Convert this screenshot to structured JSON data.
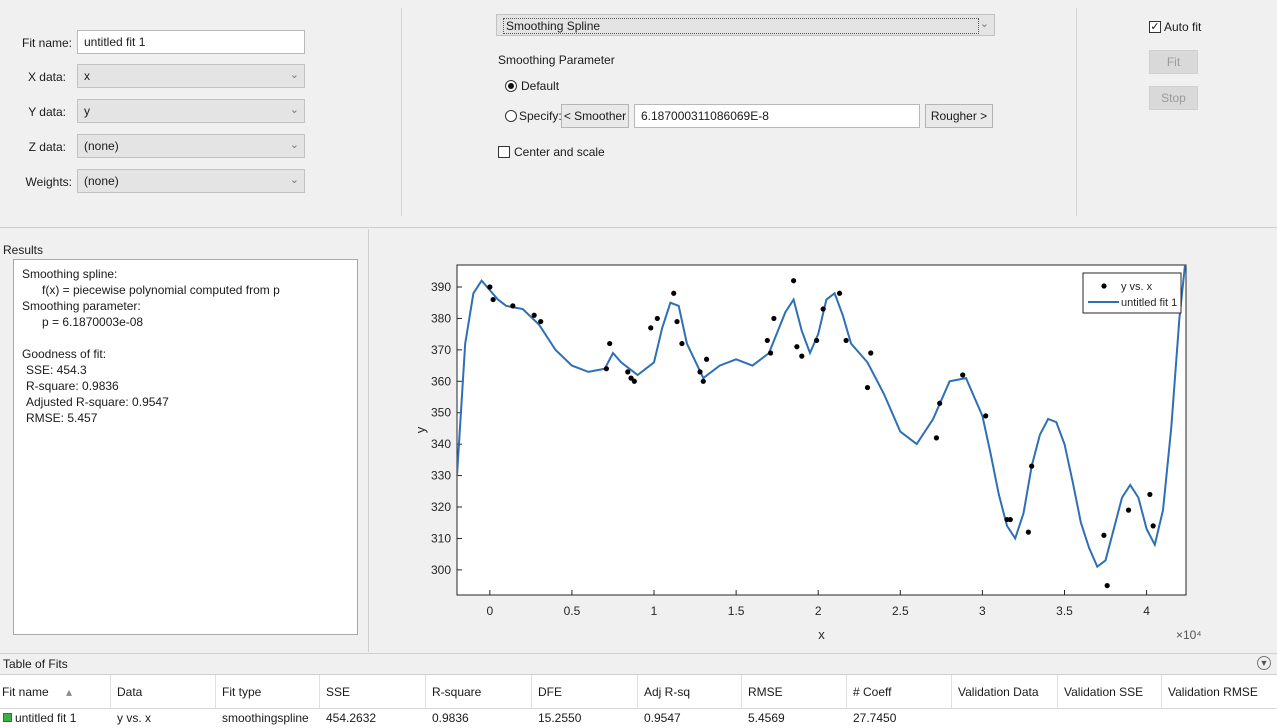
{
  "fit_config": {
    "fit_name_label": "Fit name:",
    "fit_name_value": "untitled fit 1",
    "x_data_label": "X data:",
    "x_data_value": "x",
    "y_data_label": "Y data:",
    "y_data_value": "y",
    "z_data_label": "Z data:",
    "z_data_value": "(none)",
    "weights_label": "Weights:",
    "weights_value": "(none)"
  },
  "fit_type": {
    "selected": "Smoothing Spline",
    "smoothing_parameter_label": "Smoothing Parameter",
    "default_label": "Default",
    "default_selected": true,
    "specify_label": "Specify:",
    "smoother_button": "< Smoother",
    "smoothing_value": "6.187000311086069E-8",
    "rougher_button": "Rougher >",
    "center_scale_label": "Center and scale",
    "center_scale_checked": false
  },
  "actions": {
    "auto_fit_label": "Auto fit",
    "auto_fit_checked": true,
    "fit_button": "Fit",
    "stop_button": "Stop"
  },
  "results": {
    "title": "Results",
    "lines": [
      {
        "text": "Smoothing spline:",
        "indent": 0
      },
      {
        "text": "f(x) = piecewise polynomial computed from p",
        "indent": 1
      },
      {
        "text": "Smoothing parameter:",
        "indent": 0
      },
      {
        "text": "p = 6.1870003e-08",
        "indent": 1
      },
      {
        "text": "",
        "indent": 0
      },
      {
        "text": "Goodness of fit:",
        "indent": 0
      },
      {
        "text": "SSE: 454.3",
        "indent": 2
      },
      {
        "text": "R-square: 0.9836",
        "indent": 2
      },
      {
        "text": "Adjusted R-square: 0.9547",
        "indent": 2
      },
      {
        "text": "RMSE: 5.457",
        "indent": 2
      }
    ]
  },
  "chart_data": {
    "type": "scatter",
    "xlabel": "x",
    "ylabel": "y",
    "x_multiplier": "×10⁴",
    "xlim": [
      -0.2,
      4.24
    ],
    "ylim": [
      292,
      397
    ],
    "x_ticks": [
      0,
      0.5,
      1,
      1.5,
      2,
      2.5,
      3,
      3.5,
      4
    ],
    "x_tick_labels": [
      "0",
      "0.5",
      "1",
      "1.5",
      "2",
      "2.5",
      "3",
      "3.5",
      "4"
    ],
    "y_ticks": [
      300,
      310,
      320,
      330,
      340,
      350,
      360,
      370,
      380,
      390
    ],
    "y_tick_labels": [
      "300",
      "310",
      "320",
      "330",
      "340",
      "350",
      "360",
      "370",
      "380",
      "390"
    ],
    "legend_position": "top-right",
    "series": [
      {
        "name": "y vs. x",
        "style": "points",
        "color": "#000000",
        "x": [
          0.0,
          0.02,
          0.14,
          0.27,
          0.31,
          0.71,
          0.73,
          0.84,
          0.86,
          0.88,
          0.98,
          1.02,
          1.12,
          1.14,
          1.17,
          1.28,
          1.3,
          1.32,
          1.69,
          1.71,
          1.73,
          1.85,
          1.87,
          1.9,
          1.99,
          2.03,
          2.13,
          2.17,
          2.3,
          2.32,
          2.72,
          2.74,
          2.88,
          3.02,
          3.15,
          3.17,
          3.28,
          3.3,
          3.74,
          3.76,
          3.89,
          4.02,
          4.04
        ],
        "y": [
          390,
          386,
          384,
          381,
          379,
          364,
          372,
          363,
          361,
          360,
          377,
          380,
          388,
          379,
          372,
          363,
          360,
          367,
          373,
          369,
          380,
          392,
          371,
          368,
          373,
          383,
          388,
          373,
          358,
          369,
          342,
          353,
          362,
          349,
          316,
          316,
          312,
          333,
          311,
          295,
          319,
          324,
          314
        ]
      },
      {
        "name": "untitled fit 1",
        "style": "line",
        "color": "#2e6fb5",
        "x": [
          -0.2,
          -0.15,
          -0.1,
          -0.05,
          0.0,
          0.05,
          0.1,
          0.2,
          0.3,
          0.4,
          0.5,
          0.6,
          0.7,
          0.75,
          0.8,
          0.9,
          1.0,
          1.05,
          1.1,
          1.15,
          1.2,
          1.3,
          1.4,
          1.5,
          1.6,
          1.7,
          1.8,
          1.85,
          1.9,
          1.95,
          2.0,
          2.05,
          2.1,
          2.15,
          2.2,
          2.3,
          2.4,
          2.5,
          2.6,
          2.7,
          2.8,
          2.9,
          3.0,
          3.05,
          3.1,
          3.15,
          3.2,
          3.25,
          3.3,
          3.35,
          3.4,
          3.45,
          3.5,
          3.55,
          3.6,
          3.65,
          3.7,
          3.75,
          3.8,
          3.85,
          3.9,
          3.95,
          4.0,
          4.05,
          4.1,
          4.15,
          4.2,
          4.24
        ],
        "y": [
          330,
          372,
          388,
          392,
          389,
          386,
          384,
          383,
          378,
          370,
          365,
          363,
          364,
          369,
          366,
          362,
          366,
          377,
          385,
          384,
          372,
          361,
          365,
          367,
          365,
          369,
          382,
          386,
          376,
          369,
          375,
          386,
          388,
          381,
          372,
          366,
          356,
          344,
          340,
          348,
          360,
          361,
          349,
          337,
          324,
          314,
          310,
          318,
          333,
          343,
          348,
          347,
          340,
          328,
          315,
          307,
          301,
          303,
          313,
          323,
          327,
          323,
          313,
          308,
          319,
          345,
          380,
          400
        ]
      }
    ]
  },
  "table_of_fits": {
    "title": "Table of Fits",
    "sort_indicator": "▴",
    "columns": [
      "Fit name",
      "Data",
      "Fit type",
      "SSE",
      "R-square",
      "DFE",
      "Adj R-sq",
      "RMSE",
      "# Coeff",
      "Validation Data",
      "Validation SSE",
      "Validation RMSE"
    ],
    "rows": [
      {
        "status_color": "#3cb043",
        "cells": [
          "untitled fit 1",
          "y vs. x",
          "smoothingspline",
          "454.2632",
          "0.9836",
          "15.2550",
          "0.9547",
          "5.4569",
          "27.7450",
          "",
          "",
          ""
        ]
      }
    ]
  }
}
